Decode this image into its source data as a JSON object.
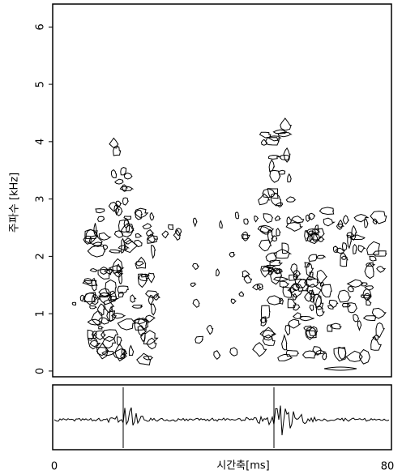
{
  "chart_data": {
    "type": "spectrogram",
    "ylabel": "주파수 [kHz]",
    "xlabel": "시간축[ms]",
    "xlim": [
      0,
      80
    ],
    "xticks": [
      0,
      80
    ],
    "ylim": [
      -0.1,
      6.4
    ],
    "yticks": [
      0,
      1,
      2,
      3,
      4,
      5,
      6
    ]
  }
}
